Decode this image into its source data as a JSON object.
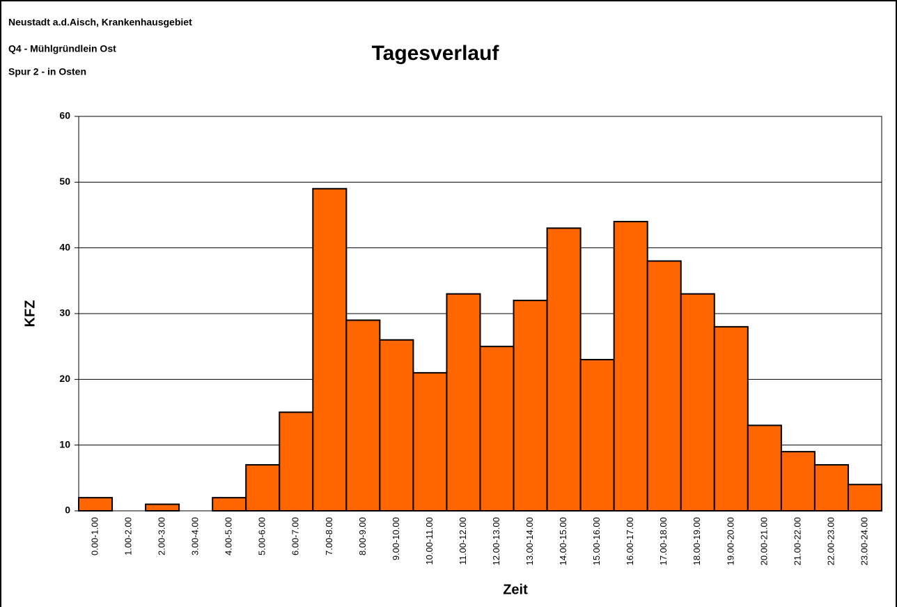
{
  "chart_data": {
    "type": "bar",
    "title": "Tagesverlauf",
    "annotations": [
      "Neustadt a.d.Aisch, Krankenhausgebiet",
      "Q4 - Mühlgründlein Ost",
      "Spur 2 - in Osten"
    ],
    "x_label": "Zeit",
    "y_label": "KFZ",
    "categories": [
      "0.00-1.00",
      "1.00-2.00",
      "2.00-3.00",
      "3.00-4.00",
      "4.00-5.00",
      "5.00-6.00",
      "6.00-7.00",
      "7.00-8.00",
      "8.00-9.00",
      "9.00-10.00",
      "10.00-11.00",
      "11.00-12.00",
      "12.00-13.00",
      "13.00-14.00",
      "14.00-15.00",
      "15.00-16.00",
      "16.00-17.00",
      "17.00-18.00",
      "18.00-19.00",
      "19.00-20.00",
      "20.00-21.00",
      "21.00-22.00",
      "22.00-23.00",
      "23.00-24.00"
    ],
    "values": [
      2,
      0,
      1,
      0,
      2,
      7,
      15,
      49,
      29,
      26,
      21,
      33,
      25,
      32,
      43,
      23,
      44,
      38,
      33,
      28,
      13,
      9,
      7,
      4
    ],
    "color": "#ff6600",
    "ylim": [
      0,
      60
    ],
    "yticks": [
      0,
      10,
      20,
      30,
      40,
      50,
      60
    ],
    "grid": true
  }
}
